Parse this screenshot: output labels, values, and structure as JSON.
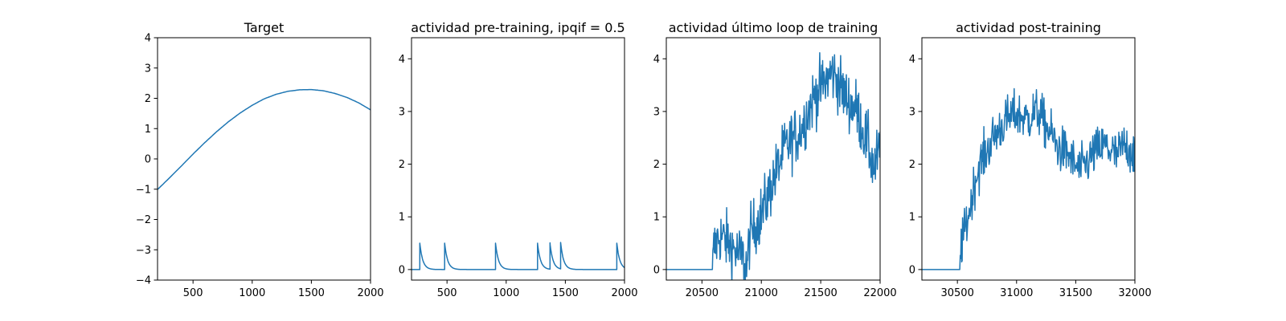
{
  "chart_data": [
    {
      "type": "line",
      "title": "Target",
      "xlim": [
        200,
        2000
      ],
      "ylim": [
        -4,
        4
      ],
      "xticks": [
        500,
        1000,
        1500,
        2000
      ],
      "yticks": [
        -4,
        -3,
        -2,
        -1,
        0,
        1,
        2,
        3,
        4
      ],
      "color": "#1f77b4",
      "series": [
        {
          "x": [
            200,
            300,
            400,
            500,
            600,
            700,
            800,
            900,
            1000,
            1100,
            1200,
            1300,
            1400,
            1500,
            1600,
            1700,
            1800,
            1900,
            2000
          ],
          "values": [
            -1.01,
            -0.63,
            -0.24,
            0.16,
            0.54,
            0.9,
            1.23,
            1.52,
            1.77,
            1.98,
            2.13,
            2.23,
            2.28,
            2.29,
            2.25,
            2.16,
            2.03,
            1.85,
            1.62
          ]
        }
      ]
    },
    {
      "type": "line",
      "title": "actividad pre-training, ipqif = 0.5",
      "xlim": [
        200,
        2000
      ],
      "ylim": [
        -0.2,
        4.4
      ],
      "xticks": [
        500,
        1000,
        1500,
        2000
      ],
      "yticks": [
        0,
        1,
        2,
        3,
        4
      ],
      "color": "#1f77b4",
      "spikes": [
        270,
        480,
        910,
        1265,
        1370,
        1460,
        1935
      ],
      "spike_height": 0.5,
      "decay": 25
    },
    {
      "type": "line",
      "title": "actividad último loop de training",
      "xlim": [
        20200,
        22000
      ],
      "ylim": [
        -0.2,
        4.4
      ],
      "xticks": [
        20500,
        21000,
        21500,
        22000
      ],
      "yticks": [
        0,
        1,
        2,
        3,
        4
      ],
      "color": "#1f77b4",
      "series": [
        {
          "x": [
            20200,
            20590,
            20600,
            20650,
            20700,
            20750,
            20800,
            20850,
            20880,
            20900,
            20950,
            21000,
            21050,
            21100,
            21150,
            21200,
            21250,
            21300,
            21350,
            21400,
            21450,
            21500,
            21550,
            21600,
            21650,
            21700,
            21750,
            21800,
            21850,
            21900,
            21950,
            22000
          ],
          "values": [
            0,
            0,
            0.4,
            0.65,
            0.55,
            0.45,
            0.3,
            0.2,
            0.05,
            0.6,
            0.85,
            1.05,
            1.35,
            1.7,
            2.0,
            2.3,
            2.45,
            2.55,
            2.75,
            3.05,
            3.3,
            3.45,
            3.6,
            3.75,
            3.55,
            3.3,
            3.15,
            3.05,
            2.7,
            2.35,
            1.9,
            2.3
          ]
        }
      ],
      "noise": 0.28
    },
    {
      "type": "line",
      "title": "actividad post-training",
      "xlim": [
        30200,
        32000
      ],
      "ylim": [
        -0.2,
        4.4
      ],
      "xticks": [
        30500,
        31000,
        31500,
        32000
      ],
      "yticks": [
        0,
        1,
        2,
        3,
        4
      ],
      "color": "#1f77b4",
      "series": [
        {
          "x": [
            30200,
            30520,
            30530,
            30550,
            30600,
            30650,
            30700,
            30750,
            30800,
            30850,
            30900,
            30950,
            31000,
            31050,
            31100,
            31150,
            31200,
            31250,
            31300,
            31350,
            31400,
            31450,
            31500,
            31550,
            31600,
            31650,
            31700,
            31750,
            31800,
            31850,
            31900,
            31950,
            32000
          ],
          "values": [
            0,
            0,
            0.45,
            0.6,
            1.1,
            1.7,
            2.05,
            2.25,
            2.5,
            2.65,
            2.8,
            2.9,
            2.95,
            2.9,
            2.85,
            3.0,
            2.95,
            2.7,
            2.55,
            2.3,
            2.25,
            2.15,
            1.95,
            1.9,
            2.05,
            2.2,
            2.3,
            2.35,
            2.25,
            2.15,
            2.35,
            2.3,
            2.2
          ]
        }
      ],
      "noise": 0.22
    }
  ]
}
